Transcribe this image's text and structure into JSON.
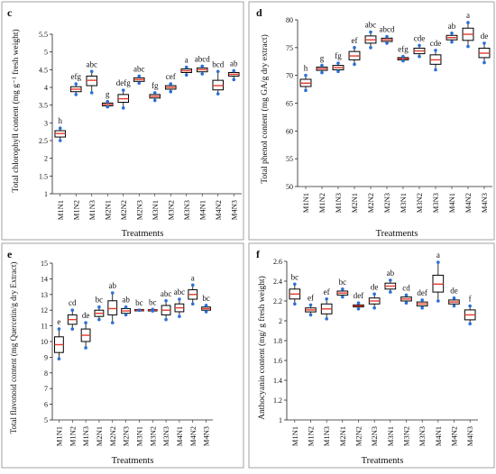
{
  "colors": {
    "whisker_point": "#2a6fd6",
    "median_line": "#e23b2b",
    "box_stroke": "#000000",
    "panel_border": "#8c8c8c"
  },
  "chart_data": [
    {
      "panel_letter": "c",
      "type": "box",
      "categories": [
        "M1N1",
        "M1N2",
        "M1N3",
        "M2N1",
        "M2N2",
        "M2N3",
        "M3N1",
        "M3N2",
        "M3N3",
        "M4N1",
        "M4N2",
        "M4N3"
      ],
      "boxes": [
        {
          "min": 2.5,
          "q1": 2.6,
          "median": 2.7,
          "q3": 2.78,
          "max": 2.85
        },
        {
          "min": 3.8,
          "q1": 3.88,
          "median": 3.95,
          "q3": 4.02,
          "max": 4.1
        },
        {
          "min": 3.85,
          "q1": 4.05,
          "median": 4.2,
          "q3": 4.32,
          "max": 4.45
        },
        {
          "min": 3.45,
          "q1": 3.48,
          "median": 3.52,
          "q3": 3.56,
          "max": 3.6
        },
        {
          "min": 3.42,
          "q1": 3.58,
          "median": 3.68,
          "q3": 3.8,
          "max": 3.92
        },
        {
          "min": 4.12,
          "q1": 4.17,
          "median": 4.22,
          "q3": 4.27,
          "max": 4.32
        },
        {
          "min": 3.63,
          "q1": 3.7,
          "median": 3.75,
          "q3": 3.8,
          "max": 3.85
        },
        {
          "min": 3.88,
          "q1": 3.95,
          "median": 4.0,
          "q3": 4.05,
          "max": 4.1
        },
        {
          "min": 4.35,
          "q1": 4.42,
          "median": 4.47,
          "q3": 4.52,
          "max": 4.57
        },
        {
          "min": 4.38,
          "q1": 4.44,
          "median": 4.5,
          "q3": 4.55,
          "max": 4.6
        },
        {
          "min": 3.82,
          "q1": 3.93,
          "median": 4.05,
          "q3": 4.2,
          "max": 4.45
        },
        {
          "min": 4.22,
          "q1": 4.32,
          "median": 4.37,
          "q3": 4.42,
          "max": 4.47
        }
      ],
      "letters": [
        "h",
        "efg",
        "abc",
        "g",
        "defg",
        "abc",
        "fg",
        "cef",
        "a",
        "abcd",
        "bcd",
        "ab"
      ],
      "ylabel": "Total chlorophyll content (mg g⁻¹ fresh weight)",
      "xlabel": "Treatments",
      "ylim": [
        1,
        5.5
      ],
      "yticks": [
        1,
        1.5,
        2,
        2.5,
        3,
        3.5,
        4,
        4.5,
        5,
        5.5
      ],
      "ytick_labels": [
        "1",
        "1.5",
        "2",
        "2.5",
        "3",
        "3.5",
        "4",
        "4.5",
        "5",
        "5.5"
      ]
    },
    {
      "panel_letter": "d",
      "type": "box",
      "categories": [
        "M1N1",
        "M1N2",
        "M1N3",
        "M2N1",
        "M2N2",
        "M2N3",
        "M3N1",
        "M3N2",
        "M3N3",
        "M4N1",
        "M4N2",
        "M4N3"
      ],
      "boxes": [
        {
          "min": 67.3,
          "q1": 68.0,
          "median": 68.6,
          "q3": 69.3,
          "max": 70.0
        },
        {
          "min": 70.5,
          "q1": 70.9,
          "median": 71.2,
          "q3": 71.5,
          "max": 71.8
        },
        {
          "min": 70.7,
          "q1": 71.0,
          "median": 71.4,
          "q3": 71.8,
          "max": 72.2
        },
        {
          "min": 72.0,
          "q1": 72.8,
          "median": 73.5,
          "q3": 74.3,
          "max": 75.0
        },
        {
          "min": 75.0,
          "q1": 75.8,
          "median": 76.4,
          "q3": 77.1,
          "max": 77.8
        },
        {
          "min": 75.8,
          "q1": 76.1,
          "median": 76.4,
          "q3": 76.7,
          "max": 77.0
        },
        {
          "min": 72.6,
          "q1": 72.8,
          "median": 73.0,
          "q3": 73.2,
          "max": 73.4
        },
        {
          "min": 73.4,
          "q1": 73.9,
          "median": 74.4,
          "q3": 74.9,
          "max": 75.4
        },
        {
          "min": 71.0,
          "q1": 72.0,
          "median": 72.8,
          "q3": 73.7,
          "max": 74.5
        },
        {
          "min": 76.0,
          "q1": 76.4,
          "median": 76.8,
          "q3": 77.2,
          "max": 77.6
        },
        {
          "min": 75.2,
          "q1": 76.3,
          "median": 77.4,
          "q3": 78.5,
          "max": 79.5
        },
        {
          "min": 72.3,
          "q1": 73.2,
          "median": 74.0,
          "q3": 74.9,
          "max": 75.8
        }
      ],
      "letters": [
        "h",
        "g",
        "fg",
        "ef",
        "abc",
        "abcd",
        "efg",
        "cde",
        "cde",
        "ab",
        "a",
        "de"
      ],
      "ylabel": "Total phenol content (mg GA/g dry extract)",
      "xlabel": "Treatments",
      "ylim": [
        50,
        80
      ],
      "yticks": [
        50,
        55,
        60,
        65,
        70,
        75,
        80
      ],
      "ytick_labels": [
        "50",
        "55",
        "60",
        "65",
        "70",
        "75",
        "80"
      ]
    },
    {
      "panel_letter": "e",
      "type": "box",
      "categories": [
        "M1N1",
        "M1N2",
        "M1N3",
        "M2N1",
        "M2N2",
        "M2N3",
        "M3N1",
        "M3N2",
        "M3N3",
        "M4N1",
        "M4N2",
        "M4N3"
      ],
      "boxes": [
        {
          "min": 8.9,
          "q1": 9.3,
          "median": 9.8,
          "q3": 10.3,
          "max": 10.8
        },
        {
          "min": 10.8,
          "q1": 11.1,
          "median": 11.4,
          "q3": 11.7,
          "max": 12.0
        },
        {
          "min": 9.6,
          "q1": 10.0,
          "median": 10.4,
          "q3": 10.8,
          "max": 11.2
        },
        {
          "min": 11.4,
          "q1": 11.6,
          "median": 11.8,
          "q3": 12.0,
          "max": 12.2
        },
        {
          "min": 11.2,
          "q1": 11.7,
          "median": 12.1,
          "q3": 12.6,
          "max": 13.1
        },
        {
          "min": 11.7,
          "q1": 11.8,
          "median": 11.95,
          "q3": 12.1,
          "max": 12.2
        },
        {
          "min": 12.0,
          "q1": 12.0,
          "median": 12.0,
          "q3": 12.0,
          "max": 12.0
        },
        {
          "min": 11.95,
          "q1": 11.97,
          "median": 12.0,
          "q3": 12.02,
          "max": 12.05
        },
        {
          "min": 11.4,
          "q1": 11.7,
          "median": 12.0,
          "q3": 12.3,
          "max": 12.6
        },
        {
          "min": 11.6,
          "q1": 11.9,
          "median": 12.15,
          "q3": 12.4,
          "max": 12.7
        },
        {
          "min": 12.4,
          "q1": 12.7,
          "median": 13.0,
          "q3": 13.3,
          "max": 13.6
        },
        {
          "min": 11.9,
          "q1": 12.0,
          "median": 12.1,
          "q3": 12.2,
          "max": 12.3
        }
      ],
      "letters": [
        "e",
        "cd",
        "de",
        "bc",
        "ab",
        "ab",
        "bc",
        "bc",
        "abc",
        "abc",
        "a",
        "bc"
      ],
      "ylabel": "Total flavonoid content (mg Quercetin/g dry Extract)",
      "xlabel": "Treatments",
      "ylim": [
        5,
        15
      ],
      "yticks": [
        5,
        6,
        7,
        8,
        9,
        10,
        11,
        12,
        13,
        14,
        15
      ],
      "ytick_labels": [
        "5",
        "6",
        "7",
        "8",
        "9",
        "10",
        "11",
        "12",
        "13",
        "14",
        "15"
      ]
    },
    {
      "panel_letter": "f",
      "type": "box",
      "categories": [
        "M1N1",
        "M1N2",
        "M1N3",
        "M2N1",
        "M2N2",
        "M2N3",
        "M3N1",
        "M3N2",
        "M3N3",
        "M4N1",
        "M4N2",
        "M4N3"
      ],
      "boxes": [
        {
          "min": 2.17,
          "q1": 2.22,
          "median": 2.27,
          "q3": 2.32,
          "max": 2.37
        },
        {
          "min": 2.06,
          "q1": 2.09,
          "median": 2.11,
          "q3": 2.13,
          "max": 2.16
        },
        {
          "min": 2.02,
          "q1": 2.07,
          "median": 2.12,
          "q3": 2.17,
          "max": 2.22
        },
        {
          "min": 2.24,
          "q1": 2.26,
          "median": 2.28,
          "q3": 2.3,
          "max": 2.32
        },
        {
          "min": 2.12,
          "q1": 2.14,
          "median": 2.15,
          "q3": 2.16,
          "max": 2.18
        },
        {
          "min": 2.13,
          "q1": 2.17,
          "median": 2.2,
          "q3": 2.23,
          "max": 2.27
        },
        {
          "min": 2.29,
          "q1": 2.32,
          "median": 2.35,
          "q3": 2.38,
          "max": 2.41
        },
        {
          "min": 2.18,
          "q1": 2.2,
          "median": 2.22,
          "q3": 2.24,
          "max": 2.26
        },
        {
          "min": 2.13,
          "q1": 2.15,
          "median": 2.17,
          "q3": 2.19,
          "max": 2.21
        },
        {
          "min": 2.2,
          "q1": 2.29,
          "median": 2.37,
          "q3": 2.46,
          "max": 2.59
        },
        {
          "min": 2.15,
          "q1": 2.17,
          "median": 2.19,
          "q3": 2.21,
          "max": 2.23
        },
        {
          "min": 1.97,
          "q1": 2.01,
          "median": 2.06,
          "q3": 2.11,
          "max": 2.15
        }
      ],
      "letters": [
        "bc",
        "ef",
        "ef",
        "bc",
        "def",
        "de",
        "ab",
        "cd",
        "def",
        "a",
        "de",
        "f"
      ],
      "ylabel": "Anthocyanin content (mg/ g fresh weight)",
      "xlabel": "Treatments",
      "ylim": [
        1,
        2.6
      ],
      "yticks": [
        1,
        1.2,
        1.4,
        1.6,
        1.8,
        2,
        2.2,
        2.4,
        2.6
      ],
      "ytick_labels": [
        "1",
        "1.2",
        "1.4",
        "1.6",
        "1.8",
        "2",
        "2.2",
        "2.4",
        "2.6"
      ]
    }
  ]
}
